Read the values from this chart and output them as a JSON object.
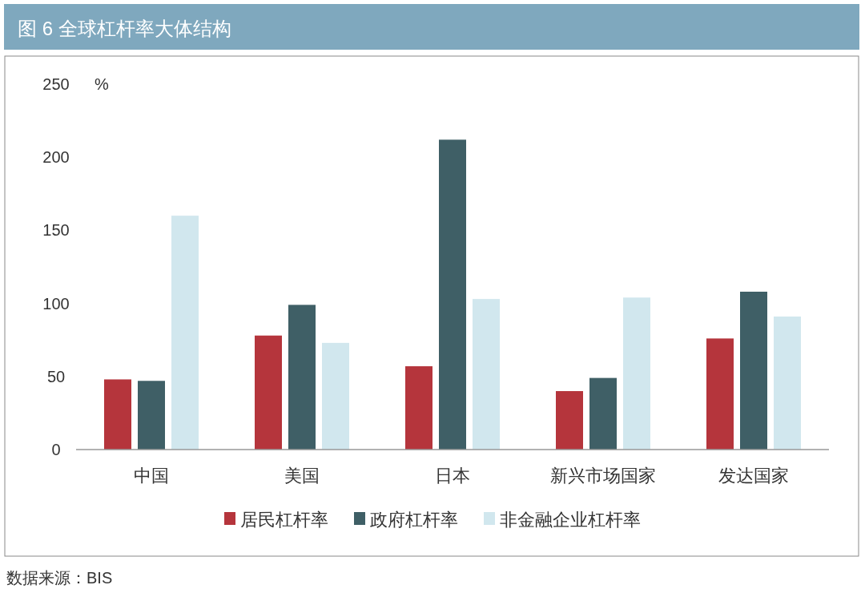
{
  "chart_data": {
    "type": "bar",
    "title": "图 6  全球杠杆率大体结构",
    "ylabel": "%",
    "categories": [
      "中国",
      "美国",
      "日本",
      "新兴市场国家",
      "发达国家"
    ],
    "series": [
      {
        "name": "居民杠杆率",
        "color": "#b5353c",
        "values": [
          48,
          78,
          57,
          40,
          76
        ]
      },
      {
        "name": "政府杠杆率",
        "color": "#3f5f66",
        "values": [
          47,
          99,
          212,
          49,
          108
        ]
      },
      {
        "name": "非金融企业杠杆率",
        "color": "#d1e7ee",
        "values": [
          160,
          73,
          103,
          104,
          91
        ]
      }
    ],
    "ylim": [
      0,
      250
    ],
    "yticks": [
      0,
      50,
      100,
      150,
      200,
      250
    ],
    "grid": false,
    "legend": "bottom",
    "annotations": [
      "数据来源：BIS"
    ]
  }
}
